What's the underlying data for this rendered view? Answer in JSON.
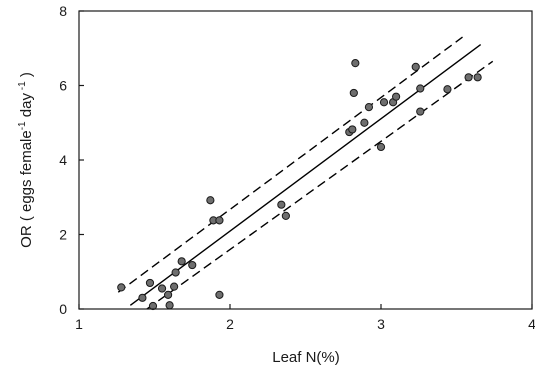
{
  "chart_data": {
    "type": "scatter",
    "xlabel": "Leaf N(%)",
    "ylabel": {
      "text1": "OR ( eggs  female",
      "sup1": "-1",
      "text2": " day",
      "sup2": " -1",
      "text3": " )"
    },
    "xlim": [
      1,
      4
    ],
    "ylim": [
      0,
      8
    ],
    "xticks": [
      "1",
      "2",
      "3",
      "4"
    ],
    "yticks": [
      "0",
      "2",
      "4",
      "6",
      "8"
    ],
    "grid": false,
    "colors": {
      "point_fill": "#6e6e6e",
      "point_stroke": "#1a1a1a",
      "line": "#000000"
    },
    "points": [
      {
        "x": 1.28,
        "y": 0.58
      },
      {
        "x": 1.42,
        "y": 0.3
      },
      {
        "x": 1.47,
        "y": 0.7
      },
      {
        "x": 1.49,
        "y": 0.08
      },
      {
        "x": 1.55,
        "y": 0.55
      },
      {
        "x": 1.59,
        "y": 0.38
      },
      {
        "x": 1.6,
        "y": 0.1
      },
      {
        "x": 1.63,
        "y": 0.6
      },
      {
        "x": 1.64,
        "y": 0.98
      },
      {
        "x": 1.68,
        "y": 1.28
      },
      {
        "x": 1.75,
        "y": 1.18
      },
      {
        "x": 1.87,
        "y": 2.92
      },
      {
        "x": 1.89,
        "y": 2.38
      },
      {
        "x": 1.93,
        "y": 2.38
      },
      {
        "x": 1.93,
        "y": 0.38
      },
      {
        "x": 2.34,
        "y": 2.8
      },
      {
        "x": 2.37,
        "y": 2.5
      },
      {
        "x": 2.79,
        "y": 4.75
      },
      {
        "x": 2.81,
        "y": 4.82
      },
      {
        "x": 2.82,
        "y": 5.8
      },
      {
        "x": 2.83,
        "y": 6.6
      },
      {
        "x": 2.89,
        "y": 5.0
      },
      {
        "x": 2.92,
        "y": 5.42
      },
      {
        "x": 3.0,
        "y": 4.35
      },
      {
        "x": 3.02,
        "y": 5.55
      },
      {
        "x": 3.08,
        "y": 5.55
      },
      {
        "x": 3.1,
        "y": 5.7
      },
      {
        "x": 3.23,
        "y": 6.5
      },
      {
        "x": 3.26,
        "y": 5.3
      },
      {
        "x": 3.26,
        "y": 5.92
      },
      {
        "x": 3.44,
        "y": 5.9
      },
      {
        "x": 3.58,
        "y": 6.22
      },
      {
        "x": 3.64,
        "y": 6.22
      }
    ],
    "regression": {
      "x": [
        1.34,
        3.66
      ],
      "y": [
        0.1,
        7.1
      ]
    },
    "upper_band": {
      "x": [
        1.26,
        3.54
      ],
      "y": [
        0.45,
        7.3
      ]
    },
    "lower_band": {
      "x": [
        1.45,
        3.74
      ],
      "y": [
        0.0,
        6.65
      ]
    }
  }
}
